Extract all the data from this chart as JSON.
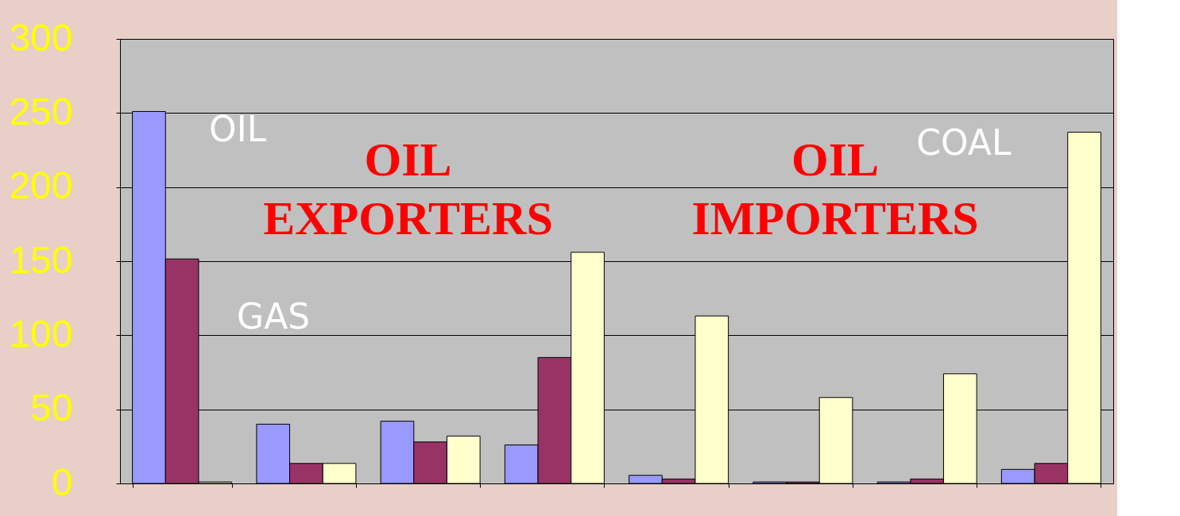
{
  "chart_data": {
    "type": "bar",
    "categories": [
      null,
      null,
      null,
      null,
      null,
      null,
      null,
      null
    ],
    "series": [
      {
        "name": "OIL",
        "color": "#9999ff",
        "values": [
          251,
          40,
          42,
          26,
          5.5,
          1,
          1,
          9.5
        ]
      },
      {
        "name": "GAS",
        "color": "#993366",
        "values": [
          151.5,
          13.5,
          28,
          85,
          3,
          1,
          3,
          13.5
        ]
      },
      {
        "name": "COAL",
        "color": "#ffffcc",
        "values": [
          1,
          13.5,
          32,
          156,
          113,
          58,
          74,
          237
        ]
      }
    ],
    "ylim": [
      0,
      300
    ],
    "yticks": [
      0,
      50,
      100,
      150,
      200,
      250,
      300
    ],
    "grid": "y",
    "legend": false,
    "annotations": [
      "OIL EXPORTERS",
      "OIL IMPORTERS"
    ]
  }
}
